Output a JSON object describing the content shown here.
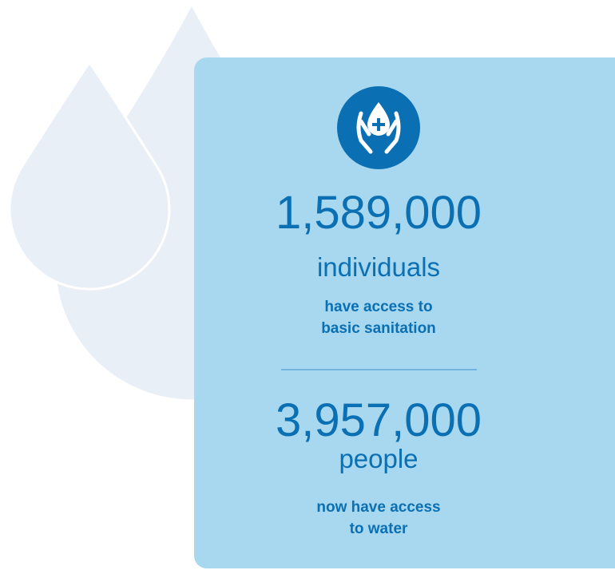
{
  "stats": [
    {
      "number": "1,589,000",
      "unit": "individuals",
      "description": [
        "have access to",
        "basic sanitation"
      ]
    },
    {
      "number": "3,957,000",
      "unit": "people",
      "description": [
        "now have access",
        "to water"
      ]
    }
  ]
}
